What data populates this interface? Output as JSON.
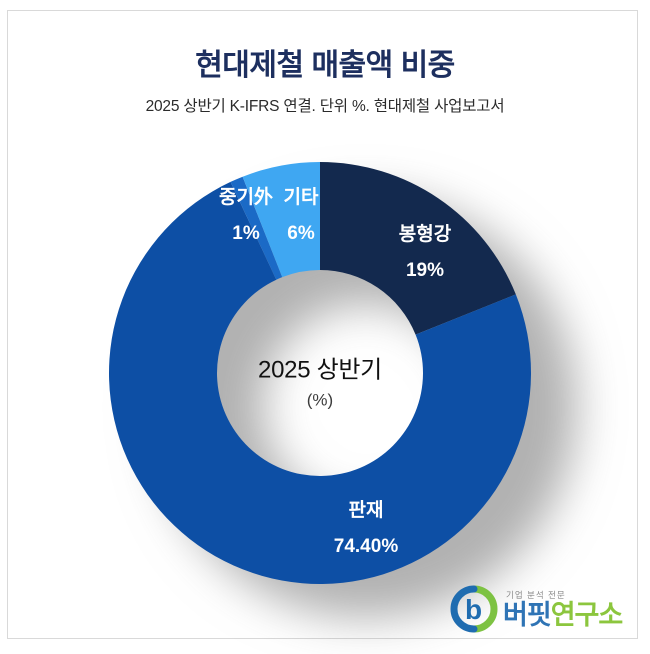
{
  "header": {
    "title": "현대제철 매출액 비중",
    "subtitle": "2025 상반기 K-IFRS 연결. 단위 %. 현대제철 사업보고서"
  },
  "chart_data": {
    "type": "pie",
    "subtype": "donut",
    "title": "현대제철 매출액 비중",
    "unit": "%",
    "source_note": "2025 상반기 K-IFRS 연결. 단위 %. 현대제철 사업보고서",
    "center_label": "2025 상반기",
    "center_sublabel": "(%)",
    "start_angle_deg": 0,
    "direction": "clockwise",
    "segments": [
      {
        "label": "봉형강",
        "value": 19,
        "value_label": "19%",
        "color": "#13294e"
      },
      {
        "label": "판재",
        "value": 74.4,
        "value_label": "74.40%",
        "color": "#0d4fa5"
      },
      {
        "label": "중기外",
        "value": 1,
        "value_label": "1%",
        "color": "#1b6ac6"
      },
      {
        "label": "기타",
        "value": 6,
        "value_label": "6%",
        "color": "#3fa7f2"
      }
    ]
  },
  "logo": {
    "tagline": "기업 분석 전문",
    "name_part1": "버핏",
    "name_part2": "연구소",
    "blue": "#2f74b5",
    "green": "#8cc63e",
    "mark_blue": "#1f6cb0",
    "mark_green": "#7dc242"
  }
}
